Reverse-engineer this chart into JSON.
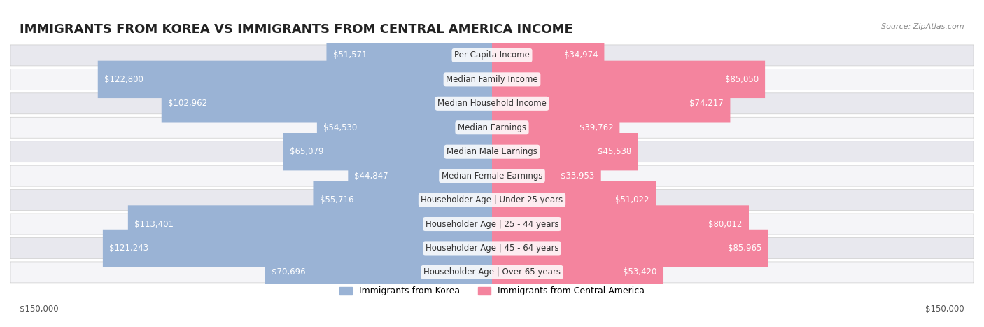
{
  "title": "IMMIGRANTS FROM KOREA VS IMMIGRANTS FROM CENTRAL AMERICA INCOME",
  "source": "Source: ZipAtlas.com",
  "categories": [
    "Per Capita Income",
    "Median Family Income",
    "Median Household Income",
    "Median Earnings",
    "Median Male Earnings",
    "Median Female Earnings",
    "Householder Age | Under 25 years",
    "Householder Age | 25 - 44 years",
    "Householder Age | 45 - 64 years",
    "Householder Age | Over 65 years"
  ],
  "korea_values": [
    51571,
    122800,
    102962,
    54530,
    65079,
    44847,
    55716,
    113401,
    121243,
    70696
  ],
  "central_america_values": [
    34974,
    85050,
    74217,
    39762,
    45538,
    33953,
    51022,
    80012,
    85965,
    53420
  ],
  "korea_labels": [
    "$51,571",
    "$122,800",
    "$102,962",
    "$54,530",
    "$65,079",
    "$44,847",
    "$55,716",
    "$113,401",
    "$121,243",
    "$70,696"
  ],
  "central_america_labels": [
    "$34,974",
    "$85,050",
    "$74,217",
    "$39,762",
    "$45,538",
    "$33,953",
    "$51,022",
    "$80,012",
    "$85,965",
    "$53,420"
  ],
  "max_value": 150000,
  "korea_color": "#9ab3d5",
  "central_america_color": "#f4849e",
  "korea_color_dark": "#6a9fc8",
  "central_america_color_dark": "#f06080",
  "korea_label_color_inside": "#ffffff",
  "korea_label_color_outside": "#555555",
  "central_america_label_color_inside": "#ffffff",
  "central_america_label_color_outside": "#555555",
  "background_color": "#ffffff",
  "row_bg_color": "#f0f0f0",
  "legend_korea": "Immigrants from Korea",
  "legend_central_america": "Immigrants from Central America",
  "xlabel_left": "$150,000",
  "xlabel_right": "$150,000",
  "title_fontsize": 13,
  "label_fontsize": 8.5,
  "category_fontsize": 8.5
}
